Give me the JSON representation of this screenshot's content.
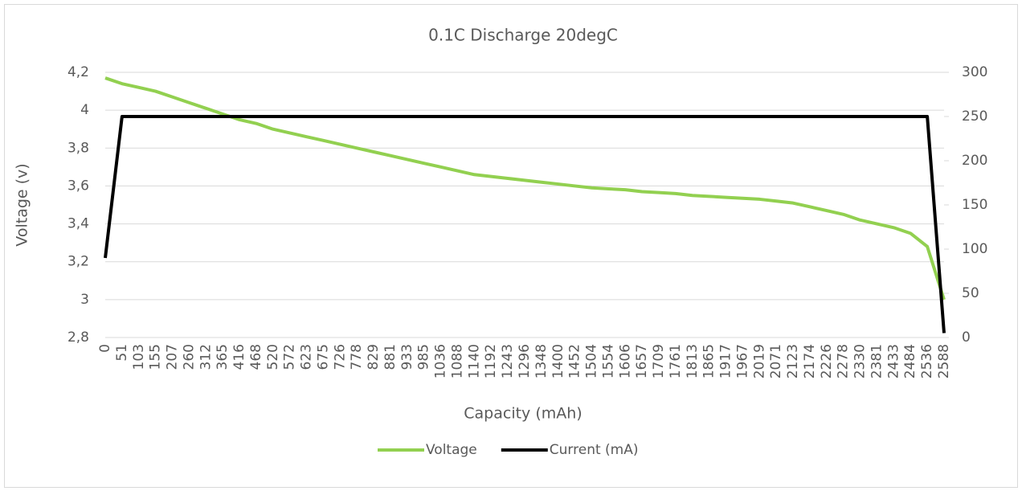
{
  "chart_data": {
    "type": "line",
    "title": "0.1C Discharge 20degC",
    "x_label": "Capacity (mAh)",
    "y_label": "Voltage (v)",
    "categories": [
      "0",
      "51",
      "103",
      "155",
      "207",
      "260",
      "312",
      "365",
      "416",
      "468",
      "520",
      "572",
      "623",
      "675",
      "726",
      "778",
      "829",
      "881",
      "933",
      "985",
      "1036",
      "1088",
      "1140",
      "1192",
      "1243",
      "1296",
      "1348",
      "1400",
      "1452",
      "1504",
      "1554",
      "1606",
      "1657",
      "1709",
      "1761",
      "1813",
      "1865",
      "1917",
      "1967",
      "2019",
      "2071",
      "2123",
      "2174",
      "2226",
      "2278",
      "2330",
      "2381",
      "2433",
      "2484",
      "2536",
      "2588"
    ],
    "series": [
      {
        "name": "Voltage",
        "color": "#92d050",
        "values": [
          4.17,
          4.14,
          4.12,
          4.1,
          4.07,
          4.04,
          4.01,
          3.98,
          3.95,
          3.93,
          3.9,
          3.88,
          3.86,
          3.84,
          3.82,
          3.8,
          3.78,
          3.76,
          3.74,
          3.72,
          3.7,
          3.68,
          3.66,
          3.65,
          3.64,
          3.63,
          3.62,
          3.61,
          3.6,
          3.59,
          3.585,
          3.58,
          3.57,
          3.565,
          3.56,
          3.55,
          3.545,
          3.54,
          3.535,
          3.53,
          3.52,
          3.51,
          3.49,
          3.47,
          3.45,
          3.42,
          3.4,
          3.38,
          3.35,
          3.28,
          3.0
        ]
      },
      {
        "name": "Current (mA)",
        "color": "#000000",
        "axis": "y2",
        "values": [
          90,
          250,
          250,
          250,
          250,
          250,
          250,
          250,
          250,
          250,
          250,
          250,
          250,
          250,
          250,
          250,
          250,
          250,
          250,
          250,
          250,
          250,
          250,
          250,
          250,
          250,
          250,
          250,
          250,
          250,
          250,
          250,
          250,
          250,
          250,
          250,
          250,
          250,
          250,
          250,
          250,
          250,
          250,
          250,
          250,
          250,
          250,
          250,
          250,
          250,
          5
        ]
      }
    ],
    "ylim": [
      2.8,
      4.2
    ],
    "yticks": [
      {
        "value": 2.8,
        "label": "2,8"
      },
      3,
      {
        "value": 3.2,
        "label": "3,2"
      },
      {
        "value": 3.4,
        "label": "3,4"
      },
      {
        "value": 3.6,
        "label": "3,6"
      },
      {
        "value": 3.8,
        "label": "3,8"
      },
      4,
      {
        "value": 4.2,
        "label": "4,2"
      }
    ],
    "y2lim": [
      0,
      300
    ],
    "y2ticks": [
      0,
      50,
      100,
      150,
      200,
      250,
      300
    ],
    "grid": true,
    "legend": "bottom"
  }
}
